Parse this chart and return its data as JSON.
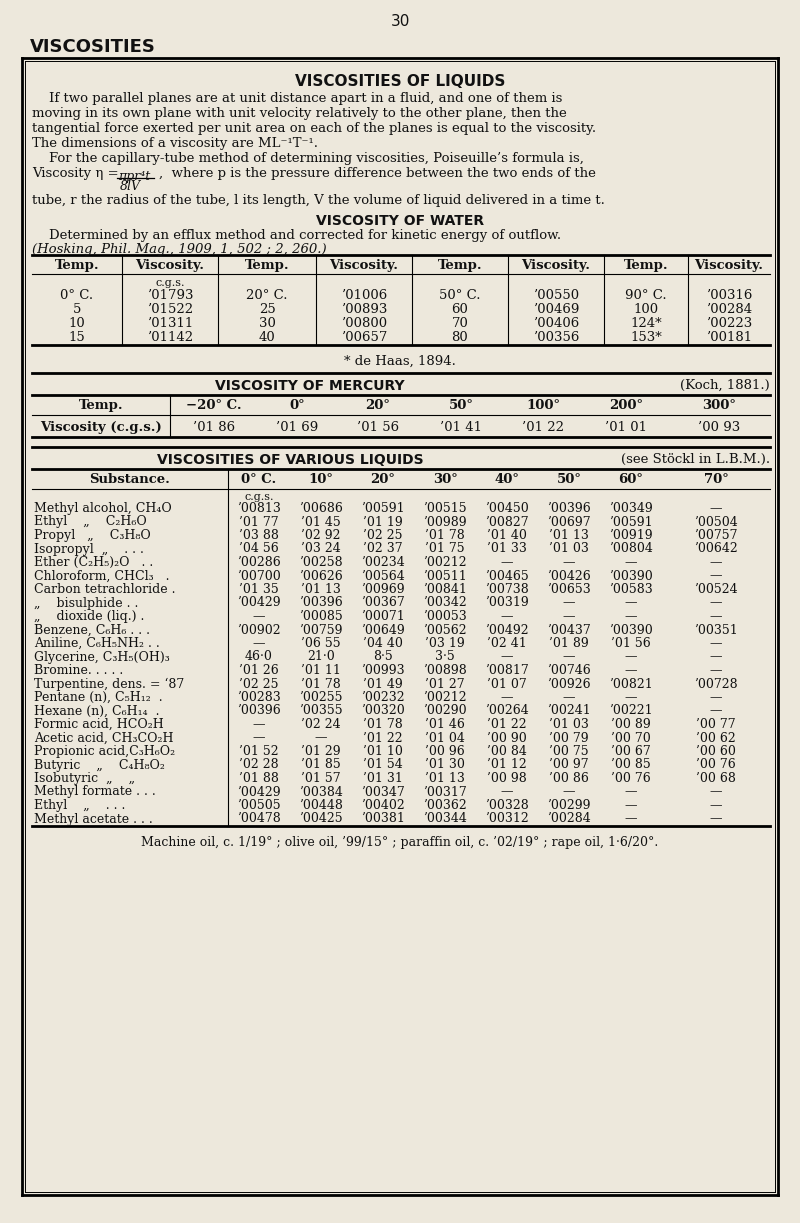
{
  "bg_color": "#ede8dc",
  "page_num": "30",
  "header_title": "VISCOSITIES",
  "box_title": "VISCOSITIES OF LIQUIDS",
  "water_title": "VISCOSITY OF WATER",
  "water_desc1": "    Determined by an efflux method and corrected for kinetic energy of outflow.",
  "water_desc2": "(Hosking, Phil. Mag., 1909, 1, 502 ; 2, 260.)",
  "water_table_headers": [
    "Temp.",
    "Viscosity.",
    "Temp.",
    "Viscosity.",
    "Temp.",
    "Viscosity.",
    "Temp.",
    "Viscosity."
  ],
  "water_table_rows": [
    [
      "0° C.",
      "’01793",
      "20° C.",
      "’01006",
      "50° C.",
      "’00550",
      "90° C.",
      "’00316"
    ],
    [
      "5",
      "’01522",
      "25",
      "’00893",
      "60",
      "’00469",
      "100",
      "’00284"
    ],
    [
      "10",
      "’01311",
      "30",
      "’00800",
      "70",
      "’00406",
      "124*",
      "’00223"
    ],
    [
      "15",
      "’01142",
      "40",
      "’00657",
      "80",
      "’00356",
      "153*",
      "’00181"
    ]
  ],
  "haas_note": "* de Haas, 1894.",
  "mercury_title": "VISCOSITY OF MERCURY",
  "mercury_ref": "(Koch, 1881.)",
  "mercury_headers": [
    "Temp.",
    "−20° C.",
    "0°",
    "20°",
    "50°",
    "100°",
    "200°",
    "300°"
  ],
  "mercury_row": [
    "Viscosity (c.g.s.)",
    "’01 86",
    "’01 69",
    "’01 56",
    "’01 41",
    "’01 22",
    "’01 01",
    "’00 93"
  ],
  "various_title": "VISCOSITIES OF VARIOUS LIQUIDS",
  "various_ref": "(see Stöckl in L.B.M.).",
  "various_headers": [
    "Substance.",
    "0° C.",
    "10°",
    "20°",
    "30°",
    "40°",
    "50°",
    "60°",
    "70°"
  ],
  "various_rows": [
    [
      "Methyl alcohol, CH₄O",
      "’00813",
      "’00686",
      "’00591",
      "’00515",
      "’00450",
      "’00396",
      "’00349",
      "—"
    ],
    [
      "Ethyl    „    C₂H₆O",
      "’01 77",
      "’01 45",
      "’01 19",
      "’00989",
      "’00827",
      "’00697",
      "’00591",
      "’00504"
    ],
    [
      "Propyl   „    C₃H₈O",
      "’03 88",
      "’02 92",
      "’02 25",
      "’01 78",
      "’01 40",
      "’01 13",
      "’00919",
      "’00757"
    ],
    [
      "Isopropyl  „    . . .",
      "’04 56",
      "’03 24",
      "’02 37",
      "’01 75",
      "’01 33",
      "’01 03",
      "’00804",
      "’00642"
    ],
    [
      "Ether (C₂H₅)₂O   . .",
      "’00286",
      "’00258",
      "’00234",
      "’00212",
      "—",
      "—",
      "—",
      "—"
    ],
    [
      "Chloroform, CHCl₃   .",
      "’00700",
      "’00626",
      "’00564",
      "’00511",
      "’00465",
      "’00426",
      "’00390",
      "—"
    ],
    [
      "Carbon tetrachloride .",
      "’01 35",
      "’01 13",
      "’00969",
      "’00841",
      "’00738",
      "’00653",
      "’00583",
      "’00524"
    ],
    [
      "„    bisulphide . .",
      "’00429",
      "’00396",
      "’00367",
      "’00342",
      "’00319",
      "—",
      "—",
      "—"
    ],
    [
      "„    dioxide (liq.) .",
      "—",
      "’00085",
      "’00071",
      "’00053",
      "—",
      "—",
      "—",
      "—"
    ],
    [
      "Benzene, C₆H₆ . . .",
      "’00902",
      "’00759",
      "’00649",
      "’00562",
      "’00492",
      "’00437",
      "’00390",
      "’00351"
    ],
    [
      "Aniline, C₆H₅NH₂ . .",
      "—",
      "’06 55",
      "’04 40",
      "’03 19",
      "’02 41",
      "’01 89",
      "’01 56",
      "—"
    ],
    [
      "Glycerine, C₃H₅(OH)₃",
      "46·0",
      "21·0",
      "8·5",
      "3·5",
      "—",
      "—",
      "—",
      "—"
    ],
    [
      "Bromine. . . . .",
      "’01 26",
      "’01 11",
      "’00993",
      "’00898",
      "’00817",
      "’00746",
      "—",
      "—"
    ],
    [
      "Turpentine, dens. = ‘87",
      "’02 25",
      "’01 78",
      "’01 49",
      "’01 27",
      "’01 07",
      "’00926",
      "’00821",
      "’00728"
    ],
    [
      "Pentane (n), C₅H₁₂  .",
      "’00283",
      "’00255",
      "’00232",
      "’00212",
      "—",
      "—",
      "—",
      "—"
    ],
    [
      "Hexane (n), C₆H₁₄  .",
      "’00396",
      "’00355",
      "’00320",
      "’00290",
      "’00264",
      "’00241",
      "’00221",
      "—"
    ],
    [
      "Formic acid, HCO₂H",
      "—",
      "’02 24",
      "’01 78",
      "’01 46",
      "’01 22",
      "’01 03",
      "’00 89",
      "’00 77"
    ],
    [
      "Acetic acid, CH₃CO₂H",
      "—",
      "—",
      "’01 22",
      "’01 04",
      "’00 90",
      "’00 79",
      "’00 70",
      "’00 62"
    ],
    [
      "Propionic acid,C₃H₆O₂",
      "’01 52",
      "’01 29",
      "’01 10",
      "’00 96",
      "’00 84",
      "’00 75",
      "’00 67",
      "’00 60"
    ],
    [
      "Butyric    „    C₄H₈O₂",
      "’02 28",
      "’01 85",
      "’01 54",
      "’01 30",
      "’01 12",
      "’00 97",
      "’00 85",
      "’00 76"
    ],
    [
      "Isobutyric  „    „",
      "’01 88",
      "’01 57",
      "’01 31",
      "’01 13",
      "’00 98",
      "’00 86",
      "’00 76",
      "’00 68"
    ],
    [
      "Methyl formate . . .",
      "’00429",
      "’00384",
      "’00347",
      "’00317",
      "—",
      "—",
      "—",
      "—"
    ],
    [
      "Ethyl    „    . . .",
      "’00505",
      "’00448",
      "’00402",
      "’00362",
      "’00328",
      "’00299",
      "—",
      "—"
    ],
    [
      "Methyl acetate . . .",
      "’00478",
      "’00425",
      "’00381",
      "’00344",
      "’00312",
      "’00284",
      "—",
      "—"
    ]
  ],
  "footer": "Machine oil, c. 1/19° ; olive oil, ’99/15° ; paraffin oil, c. ’02/19° ; rape oil, 1·6/20°."
}
